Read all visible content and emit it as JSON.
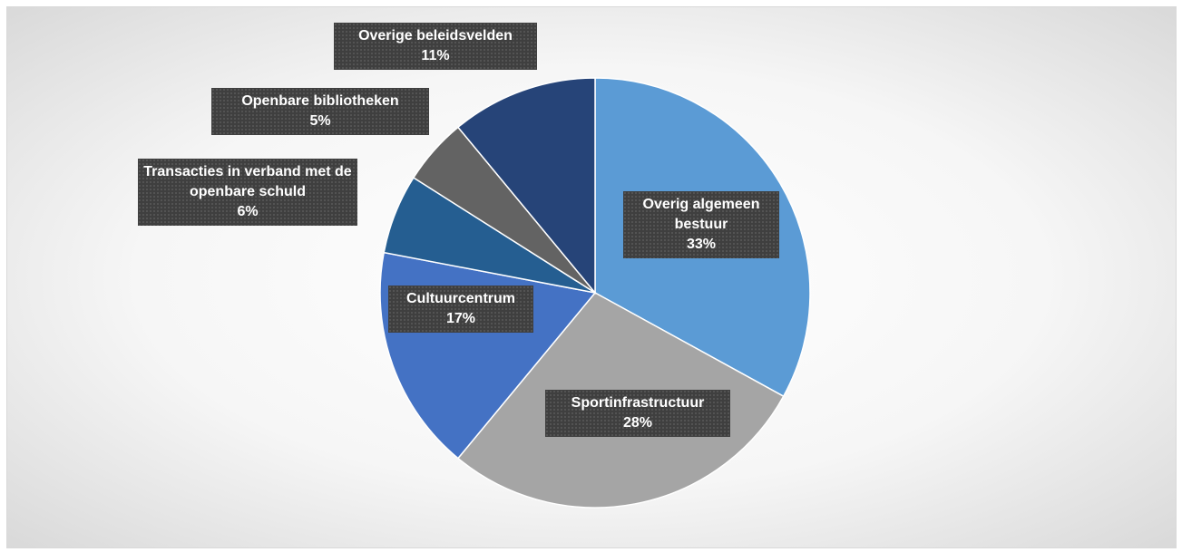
{
  "chart_data": {
    "type": "pie",
    "categories": [
      "Overig algemeen bestuur",
      "Sportinfrastructuur",
      "Cultuurcentrum",
      "Transacties in verband met de openbare schuld",
      "Openbare bibliotheken",
      "Overige beleidsvelden"
    ],
    "values": [
      33,
      28,
      17,
      6,
      5,
      11
    ],
    "value_labels": [
      "33%",
      "28%",
      "17%",
      "6%",
      "5%",
      "11%"
    ],
    "colors": [
      "#5b9bd5",
      "#a5a5a5",
      "#4472c4",
      "#255e91",
      "#636363",
      "#264478"
    ]
  }
}
